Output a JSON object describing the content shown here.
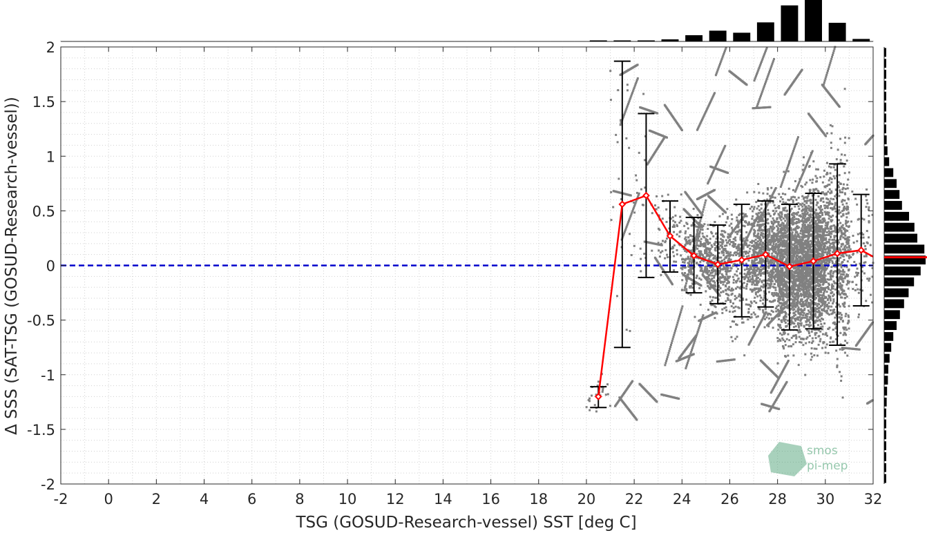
{
  "chart_data": {
    "type": "scatter",
    "xlabel": "TSG (GOSUD-Research-vessel) SST [deg C]",
    "ylabel": "Δ SSS (SAT-TSG (GOSUD-Research-vessel))",
    "xlim": [
      -2,
      32
    ],
    "ylim": [
      -2,
      2
    ],
    "x_ticks": [
      -2,
      0,
      2,
      4,
      6,
      8,
      10,
      12,
      14,
      16,
      18,
      20,
      22,
      24,
      26,
      28,
      30,
      32
    ],
    "y_ticks": [
      -2,
      -1.5,
      -1,
      -0.5,
      0,
      0.5,
      1,
      1.5,
      2
    ],
    "x_tick_labels": [
      "-2",
      "0",
      "2",
      "4",
      "6",
      "8",
      "10",
      "12",
      "14",
      "16",
      "18",
      "20",
      "22",
      "24",
      "26",
      "28",
      "30",
      "32"
    ],
    "y_tick_labels": [
      "-2",
      "-1.5",
      "-1",
      "-0.5",
      "0",
      "0.5",
      "1",
      "1.5",
      "2"
    ],
    "grid": true,
    "reference_line": {
      "y": 0,
      "color": "#0000cc",
      "style": "dashed"
    },
    "series": [
      {
        "kind": "mean-line",
        "color": "#ff0000",
        "x": [
          20.5,
          21.5,
          22.5,
          23.5,
          24.5,
          25.5,
          26.5,
          27.5,
          28.5,
          29.5,
          30.5,
          31.5,
          32
        ],
        "values": [
          -1.2,
          0.56,
          0.64,
          0.27,
          0.09,
          0.01,
          0.05,
          0.1,
          -0.01,
          0.04,
          0.11,
          0.14,
          0.08
        ]
      },
      {
        "kind": "error-bars",
        "color": "#000000",
        "x": [
          20.5,
          21.5,
          22.5,
          23.5,
          24.5,
          25.5,
          26.5,
          27.5,
          28.5,
          29.5,
          30.5,
          31.5
        ],
        "lower": [
          -1.3,
          -0.75,
          -0.11,
          -0.06,
          -0.25,
          -0.35,
          -0.47,
          -0.38,
          -0.59,
          -0.58,
          -0.73,
          -0.37
        ],
        "upper": [
          -1.11,
          1.87,
          1.39,
          0.59,
          0.44,
          0.37,
          0.56,
          0.59,
          0.56,
          0.66,
          0.93,
          0.65
        ]
      },
      {
        "kind": "scatter-cloud",
        "color": "#808080",
        "x_range": [
          20.5,
          32
        ],
        "y_range": [
          -2,
          2
        ]
      }
    ],
    "top_histogram": {
      "axis": "x",
      "color": "#000000",
      "bins": [
        20.5,
        21.5,
        22.5,
        23.5,
        24.5,
        25.5,
        26.5,
        27.5,
        28.5,
        29.5,
        30.5,
        31.5
      ],
      "relative_counts": [
        0.01,
        0.01,
        0.01,
        0.05,
        0.15,
        0.26,
        0.21,
        0.46,
        0.87,
        1.0,
        0.45,
        0.06
      ]
    },
    "right_histogram": {
      "axis": "y",
      "color": "#000000",
      "median_line_color": "#ff0000",
      "median_value": 0.05,
      "bins": [
        -2,
        -1.9,
        -1.8,
        -1.7,
        -1.6,
        -1.5,
        -1.4,
        -1.3,
        -1.2,
        -1.1,
        -1.0,
        -0.9,
        -0.8,
        -0.7,
        -0.6,
        -0.5,
        -0.4,
        -0.3,
        -0.2,
        -0.1,
        0.0,
        0.1,
        0.2,
        0.3,
        0.4,
        0.5,
        0.6,
        0.7,
        0.8,
        0.9,
        1.0,
        1.1,
        1.2,
        1.3,
        1.4,
        1.5,
        1.6,
        1.7,
        1.8,
        1.9
      ],
      "relative_counts": [
        0.02,
        0.02,
        0.02,
        0.03,
        0.04,
        0.05,
        0.05,
        0.06,
        0.07,
        0.09,
        0.1,
        0.13,
        0.17,
        0.22,
        0.3,
        0.38,
        0.48,
        0.59,
        0.72,
        0.88,
        1.0,
        0.97,
        0.8,
        0.73,
        0.6,
        0.43,
        0.37,
        0.3,
        0.22,
        0.12,
        0.08,
        0.06,
        0.04,
        0.03,
        0.02,
        0.02,
        0.02,
        0.01,
        0.01,
        0.01
      ]
    },
    "watermark": {
      "text_line1": "smos",
      "text_line2": "pi-mep"
    }
  }
}
